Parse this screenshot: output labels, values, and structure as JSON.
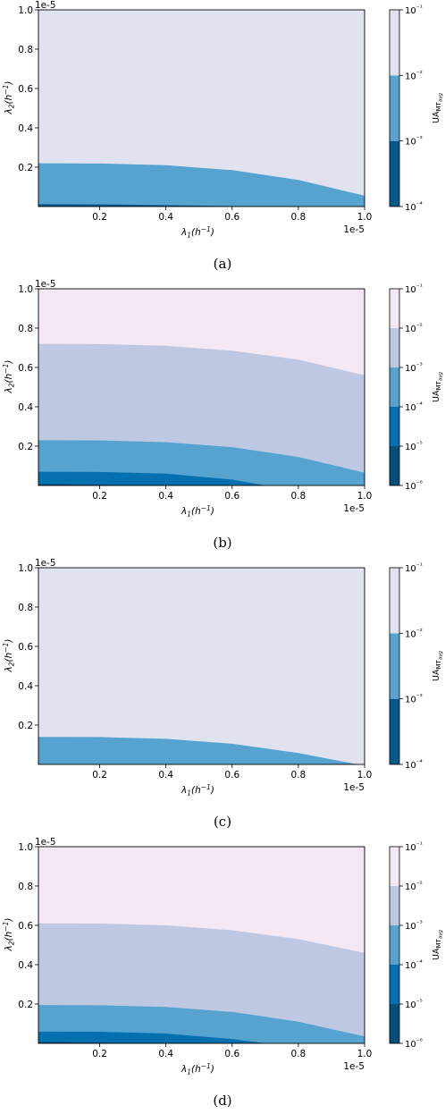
{
  "chart_data": [
    {
      "panel_label": "(a)",
      "type": "contour",
      "x_scale_note": "1e-5",
      "y_scale_note": "1e-5",
      "xlabel": "λ1(h⁻¹)",
      "ylabel": "λ2(h⁻¹)",
      "xlim": [
        0.0,
        1.0
      ],
      "ylim": [
        0.0,
        1.0
      ],
      "x_ticks": [
        "0.2",
        "0.4",
        "0.6",
        "0.8",
        "1.0"
      ],
      "y_ticks": [
        "0.2",
        "0.4",
        "0.6",
        "0.8",
        "1.0"
      ],
      "colorbar_label": "UA_MT_avg",
      "colorbar_ticks": [
        "10⁻⁴",
        "10⁻³",
        "10⁻²",
        "10⁻¹"
      ],
      "colorbar_levels": [
        0.0001,
        0.001,
        0.01,
        0.1
      ],
      "level_colors": [
        "#045a8d",
        "#56a3d0",
        "#e1e2ef"
      ],
      "boundaries": [
        {
          "level": 0.01,
          "x": [
            0.0,
            0.2,
            0.4,
            0.6,
            0.8,
            1.0
          ],
          "y": [
            0.22,
            0.219,
            0.21,
            0.185,
            0.135,
            0.055
          ]
        },
        {
          "level": 0.001,
          "x": [
            0.0,
            0.2,
            0.4,
            0.6,
            0.8
          ],
          "y": [
            0.012,
            0.011,
            0.007,
            0.002,
            0.0
          ]
        }
      ]
    },
    {
      "panel_label": "(b)",
      "type": "contour",
      "x_scale_note": "1e-5",
      "y_scale_note": "1e-5",
      "xlabel": "λ1(h⁻¹)",
      "ylabel": "λ2(h⁻¹)",
      "xlim": [
        0.0,
        1.0
      ],
      "ylim": [
        0.0,
        1.0
      ],
      "x_ticks": [
        "0.2",
        "0.4",
        "0.6",
        "0.8",
        "1.0"
      ],
      "y_ticks": [
        "0.2",
        "0.4",
        "0.6",
        "0.8",
        "1.0"
      ],
      "colorbar_label": "UA_MT_avg",
      "colorbar_ticks": [
        "10⁻⁶",
        "10⁻⁵",
        "10⁻⁴",
        "10⁻³",
        "10⁻²",
        "10⁻¹"
      ],
      "colorbar_levels": [
        1e-06,
        1e-05,
        0.0001,
        0.001,
        0.01,
        0.1
      ],
      "level_colors": [
        "#034e7b",
        "#0570b0",
        "#56a3d0",
        "#bec8e2",
        "#f3e8f3"
      ],
      "boundaries": [
        {
          "level": 0.01,
          "x": [
            0.0,
            0.2,
            0.4,
            0.6,
            0.8,
            1.0
          ],
          "y": [
            0.72,
            0.719,
            0.71,
            0.685,
            0.64,
            0.56
          ]
        },
        {
          "level": 0.001,
          "x": [
            0.0,
            0.2,
            0.4,
            0.6,
            0.8,
            1.0
          ],
          "y": [
            0.23,
            0.229,
            0.22,
            0.195,
            0.145,
            0.065
          ]
        },
        {
          "level": 0.0001,
          "x": [
            0.0,
            0.2,
            0.4,
            0.6,
            0.7
          ],
          "y": [
            0.07,
            0.069,
            0.06,
            0.03,
            0.0
          ]
        },
        {
          "level": 1e-05,
          "x": [
            0.0,
            0.2,
            0.3
          ],
          "y": [
            0.008,
            0.004,
            0.0
          ]
        }
      ]
    },
    {
      "panel_label": "(c)",
      "type": "contour",
      "x_scale_note": "1e-5",
      "y_scale_note": "1e-5",
      "xlabel": "λ1(h⁻¹)",
      "ylabel": "λ2(h⁻¹)",
      "xlim": [
        0.0,
        1.0
      ],
      "ylim": [
        0.0,
        1.0
      ],
      "x_ticks": [
        "0.2",
        "0.4",
        "0.6",
        "0.8",
        "1.0"
      ],
      "y_ticks": [
        "0.2",
        "0.4",
        "0.6",
        "0.8",
        "1.0"
      ],
      "colorbar_label": "UA_MT_avg",
      "colorbar_ticks": [
        "10⁻⁴",
        "10⁻³",
        "10⁻²",
        "10⁻¹"
      ],
      "colorbar_levels": [
        0.0001,
        0.001,
        0.01,
        0.1
      ],
      "level_colors": [
        "#045a8d",
        "#56a3d0",
        "#e1e2ef"
      ],
      "boundaries": [
        {
          "level": 0.01,
          "x": [
            0.0,
            0.2,
            0.4,
            0.6,
            0.8,
            0.98
          ],
          "y": [
            0.14,
            0.139,
            0.13,
            0.105,
            0.058,
            0.0
          ]
        }
      ]
    },
    {
      "panel_label": "(d)",
      "type": "contour",
      "x_scale_note": "1e-5",
      "y_scale_note": "1e-5",
      "xlabel": "λ1(h⁻¹)",
      "ylabel": "λ2(h⁻¹)",
      "xlim": [
        0.0,
        1.0
      ],
      "ylim": [
        0.0,
        1.0
      ],
      "x_ticks": [
        "0.2",
        "0.4",
        "0.6",
        "0.8",
        "1.0"
      ],
      "y_ticks": [
        "0.2",
        "0.4",
        "0.6",
        "0.8",
        "1.0"
      ],
      "colorbar_label": "UA_MT_avg",
      "colorbar_ticks": [
        "10⁻⁶",
        "10⁻⁵",
        "10⁻⁴",
        "10⁻³",
        "10⁻²",
        "10⁻¹"
      ],
      "colorbar_levels": [
        1e-06,
        1e-05,
        0.0001,
        0.001,
        0.01,
        0.1
      ],
      "level_colors": [
        "#034e7b",
        "#0570b0",
        "#56a3d0",
        "#bec8e2",
        "#f3e8f3"
      ],
      "boundaries": [
        {
          "level": 0.01,
          "x": [
            0.0,
            0.2,
            0.4,
            0.6,
            0.8,
            1.0
          ],
          "y": [
            0.61,
            0.609,
            0.6,
            0.575,
            0.53,
            0.46
          ]
        },
        {
          "level": 0.001,
          "x": [
            0.0,
            0.2,
            0.4,
            0.6,
            0.8,
            1.0
          ],
          "y": [
            0.195,
            0.194,
            0.185,
            0.16,
            0.11,
            0.035
          ]
        },
        {
          "level": 0.0001,
          "x": [
            0.0,
            0.2,
            0.4,
            0.6,
            0.7
          ],
          "y": [
            0.06,
            0.059,
            0.05,
            0.022,
            0.0
          ]
        },
        {
          "level": 1e-05,
          "x": [
            0.0,
            0.2,
            0.3
          ],
          "y": [
            0.008,
            0.004,
            0.0
          ]
        }
      ]
    }
  ]
}
